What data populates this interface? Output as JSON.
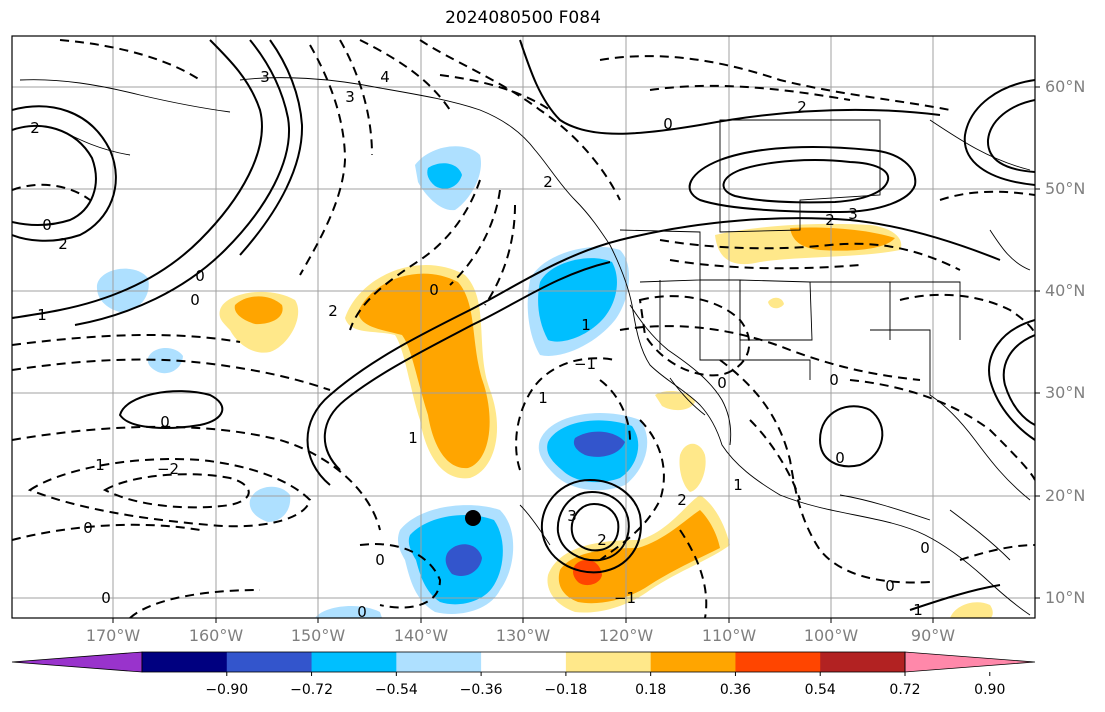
{
  "title": "2024080500 F084",
  "lat_labels": [
    "60°N",
    "50°N",
    "40°N",
    "30°N",
    "20°N",
    "10°N"
  ],
  "lon_labels": [
    "170°W",
    "160°W",
    "150°W",
    "140°W",
    "130°W",
    "120°W",
    "110°W",
    "100°W",
    "90°W"
  ],
  "colorbar": {
    "colors": [
      "#9933cc",
      "#000080",
      "#3355cc",
      "#00bfff",
      "#aee0ff",
      "#ffffff",
      "#ffe88a",
      "#ffa500",
      "#ff4500",
      "#b22222",
      "#ff88aa"
    ],
    "tick_labels": [
      "−0.90",
      "−0.72",
      "−0.54",
      "−0.36",
      "−0.18",
      "0.18",
      "0.36",
      "0.54",
      "0.72",
      "0.90"
    ]
  },
  "contour_labels": [
    "0",
    "0",
    "0",
    "0",
    "0",
    "0",
    "0",
    "0",
    "0",
    "0",
    "0",
    "0",
    "0",
    "0",
    "0",
    "1",
    "1",
    "1",
    "1",
    "1",
    "1",
    "1",
    "2",
    "2",
    "2",
    "2",
    "2",
    "2",
    "2",
    "2",
    "3",
    "3",
    "3",
    "3",
    "4",
    "−2",
    "−1",
    "−1"
  ],
  "marker": "black-dot",
  "colors": {
    "axes": "#000000",
    "grid": "#a0a0a0",
    "tick_label": "#7f7f7f",
    "coast": "#000000"
  }
}
